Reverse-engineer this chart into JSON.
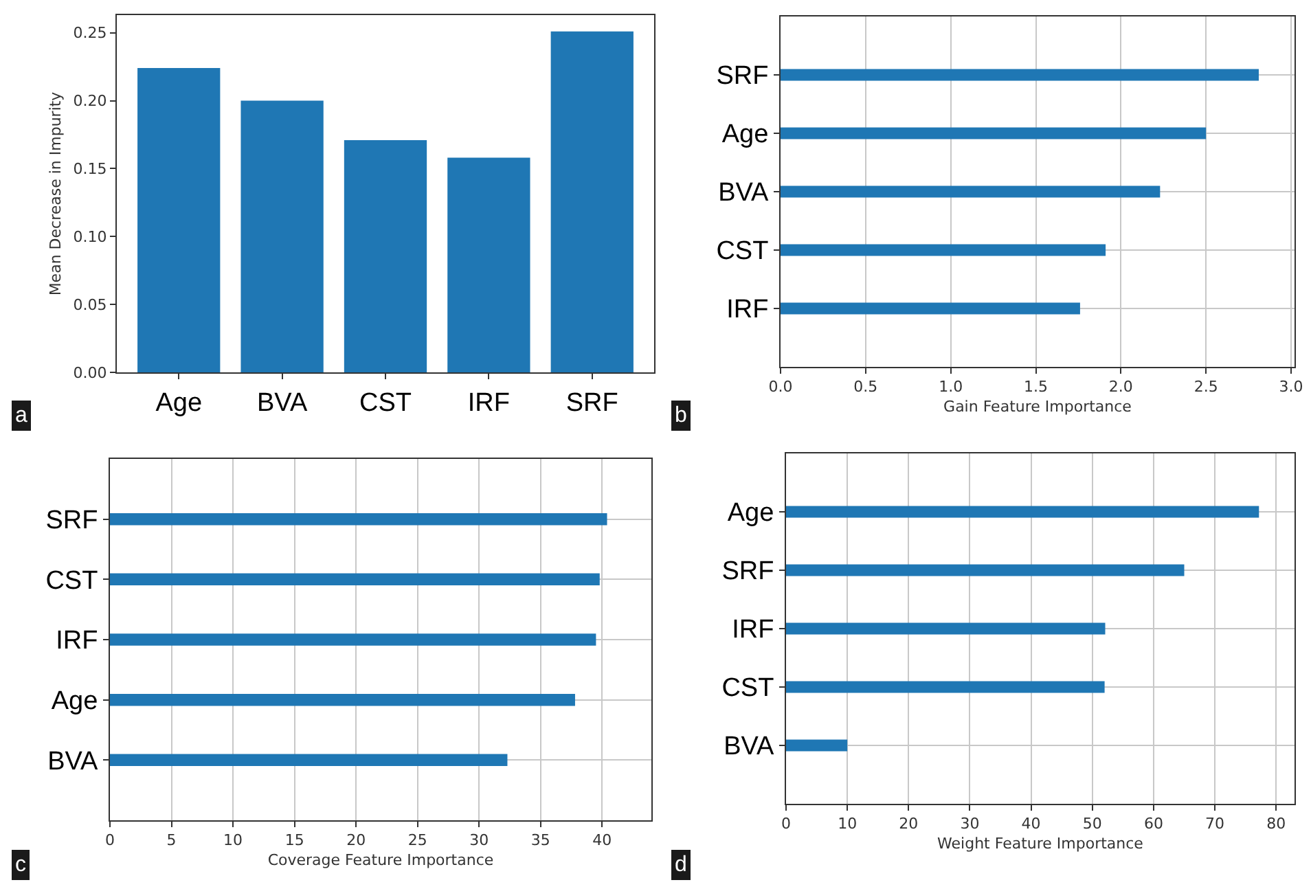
{
  "chart_data": [
    {
      "type": "bar",
      "categories": [
        "Age",
        "BVA",
        "CST",
        "IRF",
        "SRF"
      ],
      "values": [
        0.224,
        0.2,
        0.171,
        0.158,
        0.251
      ],
      "color": "#1f77b4",
      "ylabel": "Mean Decrease in Impurity",
      "ylim": [
        0,
        0.263
      ],
      "yticks": [
        {
          "value": 0,
          "label": "0.00"
        },
        {
          "value": 0.05,
          "label": "0.05"
        },
        {
          "value": 0.1,
          "label": "0.10"
        },
        {
          "value": 0.15,
          "label": "0.15"
        },
        {
          "value": 0.2,
          "label": "0.20"
        },
        {
          "value": 0.25,
          "label": "0.25"
        }
      ],
      "annotations": [
        "a"
      ]
    },
    {
      "type": "bar",
      "orientation": "horizontal",
      "categories": [
        "SRF",
        "Age",
        "BVA",
        "CST",
        "IRF"
      ],
      "values": [
        2.81,
        2.5,
        2.23,
        1.91,
        1.76
      ],
      "color": "#1f77b4",
      "xlabel": "Gain Feature Importance",
      "xlim": [
        0,
        3.02
      ],
      "xticks": [
        {
          "value": 0,
          "label": "0.0"
        },
        0.5,
        {
          "value": 1,
          "label": "1.0"
        },
        1.5,
        {
          "value": 2,
          "label": "2.0"
        },
        2.5,
        {
          "value": 3,
          "label": "3.0"
        }
      ],
      "grid": true,
      "annotations": [
        "b"
      ]
    },
    {
      "type": "bar",
      "orientation": "horizontal",
      "categories": [
        "SRF",
        "CST",
        "IRF",
        "Age",
        "BVA"
      ],
      "values": [
        40.4,
        39.8,
        39.5,
        37.8,
        32.3
      ],
      "color": "#1f77b4",
      "xlabel": "Coverage Feature Importance",
      "xlim": [
        0,
        44
      ],
      "xticks": [
        0,
        5,
        10,
        15,
        20,
        25,
        30,
        35,
        40
      ],
      "grid": true,
      "annotations": [
        "c"
      ]
    },
    {
      "type": "bar",
      "orientation": "horizontal",
      "categories": [
        "Age",
        "SRF",
        "IRF",
        "CST",
        "BVA"
      ],
      "values": [
        77.2,
        65,
        52.1,
        52,
        10
      ],
      "color": "#1f77b4",
      "xlabel": "Weight Feature Importance",
      "xlim": [
        0,
        83
      ],
      "xticks": [
        0,
        10,
        20,
        30,
        40,
        50,
        60,
        70,
        80
      ],
      "grid": true,
      "annotations": [
        "d"
      ]
    }
  ]
}
